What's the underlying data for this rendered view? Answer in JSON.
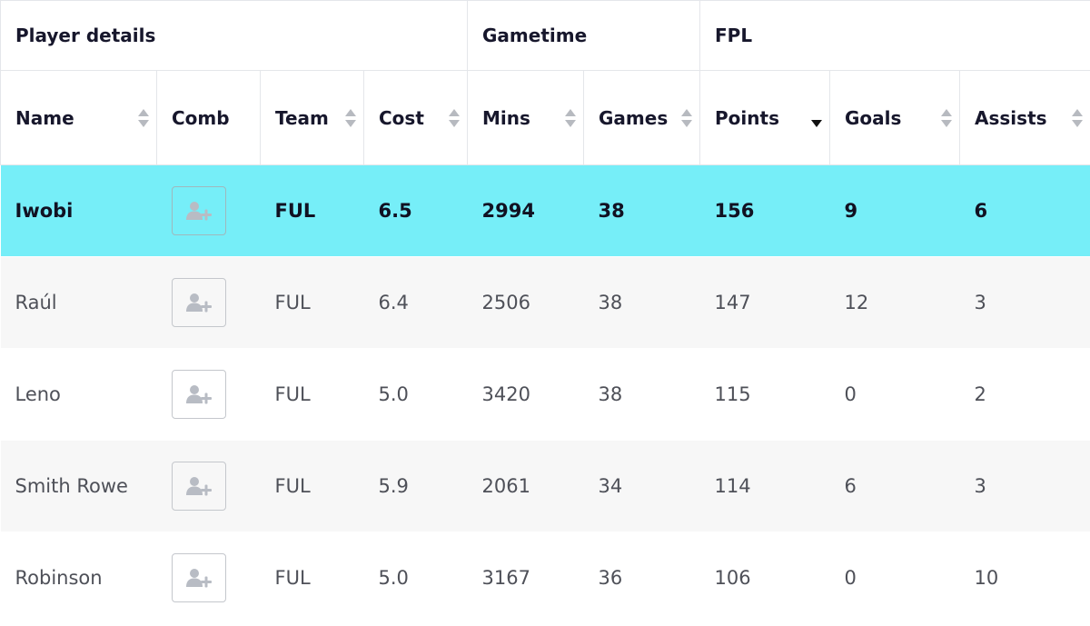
{
  "groups": [
    {
      "label": "Player details"
    },
    {
      "label": "Gametime"
    },
    {
      "label": "FPL"
    }
  ],
  "columns": [
    {
      "label": "Name",
      "sortable": true
    },
    {
      "label": "Comb",
      "sortable": false
    },
    {
      "label": "Team",
      "sortable": true
    },
    {
      "label": "Cost",
      "sortable": true
    },
    {
      "label": "Mins",
      "sortable": true
    },
    {
      "label": "Games",
      "sortable": true
    },
    {
      "label": "Points",
      "sortable": true,
      "sorted": "descending"
    },
    {
      "label": "Goals",
      "sortable": true
    },
    {
      "label": "Assists",
      "sortable": true
    }
  ],
  "comb_icon": "add-user-icon",
  "rows": [
    {
      "name": "Iwobi",
      "team": "FUL",
      "cost": "6.5",
      "mins": "2994",
      "games": "38",
      "points": "156",
      "goals": "9",
      "assists": "6",
      "highlighted": true
    },
    {
      "name": "Raúl",
      "team": "FUL",
      "cost": "6.4",
      "mins": "2506",
      "games": "38",
      "points": "147",
      "goals": "12",
      "assists": "3"
    },
    {
      "name": "Leno",
      "team": "FUL",
      "cost": "5.0",
      "mins": "3420",
      "games": "38",
      "points": "115",
      "goals": "0",
      "assists": "2"
    },
    {
      "name": "Smith Rowe",
      "team": "FUL",
      "cost": "5.9",
      "mins": "2061",
      "games": "34",
      "points": "114",
      "goals": "6",
      "assists": "3"
    },
    {
      "name": "Robinson",
      "team": "FUL",
      "cost": "5.0",
      "mins": "3167",
      "games": "36",
      "points": "106",
      "goals": "0",
      "assists": "10"
    }
  ],
  "colors": {
    "highlight_row": "#76eef8",
    "alt_row": "#f7f7f7",
    "header_text": "#17172c",
    "body_text": "#4e5058"
  }
}
